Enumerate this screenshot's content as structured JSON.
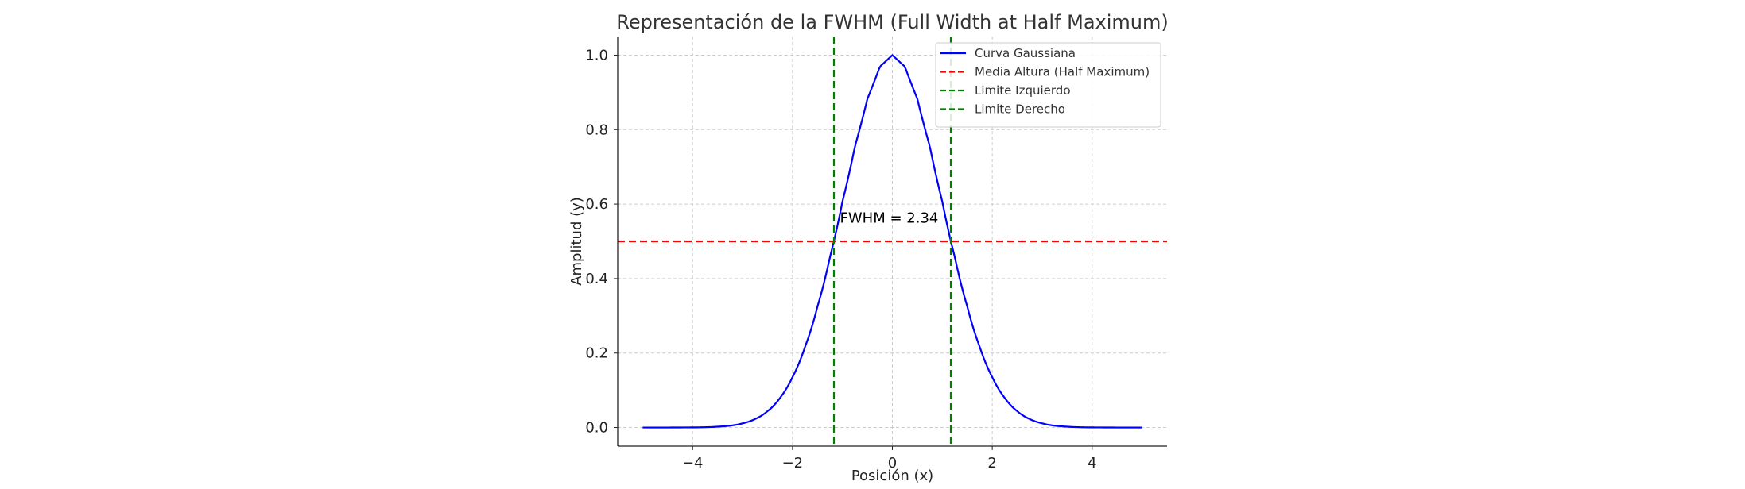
{
  "chart_data": {
    "type": "line",
    "title": "Representación de la FWHM (Full Width at Half Maximum)",
    "xlabel": "Posición (x)",
    "ylabel": "Amplitud (y)",
    "xlim": [
      -5.5,
      5.5
    ],
    "ylim": [
      -0.05,
      1.05
    ],
    "x_ticks": [
      -4,
      -2,
      0,
      2,
      4
    ],
    "x_tick_labels": [
      "−4",
      "−2",
      "0",
      "2",
      "4"
    ],
    "y_ticks": [
      0.0,
      0.2,
      0.4,
      0.6,
      0.8,
      1.0
    ],
    "y_tick_labels": [
      "0.0",
      "0.2",
      "0.4",
      "0.6",
      "0.8",
      "1.0"
    ],
    "grid": true,
    "legend_position": "top-right",
    "colors": {
      "curve": "#0000ff",
      "half_max": "#ff0000",
      "limits": "#008000",
      "grid": "#cccccc",
      "axis": "#222222"
    },
    "series": [
      {
        "name": "Curva Gaussiana",
        "style": "solid",
        "color": "#0000ff",
        "x": [
          -5.0,
          -4.5,
          -4.0,
          -3.5,
          -3.0,
          -2.75,
          -2.5,
          -2.25,
          -2.0,
          -1.75,
          -1.5,
          -1.25,
          -1.0,
          -0.75,
          -0.5,
          -0.25,
          0.0,
          0.25,
          0.5,
          0.75,
          1.0,
          1.25,
          1.5,
          1.75,
          2.0,
          2.25,
          2.5,
          2.75,
          3.0,
          3.5,
          4.0,
          4.5,
          5.0
        ],
        "y": [
          0.0,
          0.0,
          0.0003,
          0.0022,
          0.0111,
          0.0227,
          0.0439,
          0.0796,
          0.1353,
          0.2163,
          0.3247,
          0.4578,
          0.6065,
          0.7548,
          0.8825,
          0.9692,
          1.0,
          0.9692,
          0.8825,
          0.7548,
          0.6065,
          0.4578,
          0.3247,
          0.2163,
          0.1353,
          0.0796,
          0.0439,
          0.0227,
          0.0111,
          0.0022,
          0.0003,
          0.0,
          0.0
        ]
      },
      {
        "name": "Media Altura (Half Maximum)",
        "style": "dashed",
        "color": "#ff0000",
        "orientation": "horizontal",
        "y": 0.5
      },
      {
        "name": "Limite Izquierdo",
        "style": "dashed",
        "color": "#008000",
        "orientation": "vertical",
        "x": -1.17
      },
      {
        "name": "Limite Derecho",
        "style": "dashed",
        "color": "#008000",
        "orientation": "vertical",
        "x": 1.17
      }
    ],
    "annotations": [
      {
        "text": "FWHM = 2.34",
        "x": -1.05,
        "y": 0.55
      }
    ]
  }
}
